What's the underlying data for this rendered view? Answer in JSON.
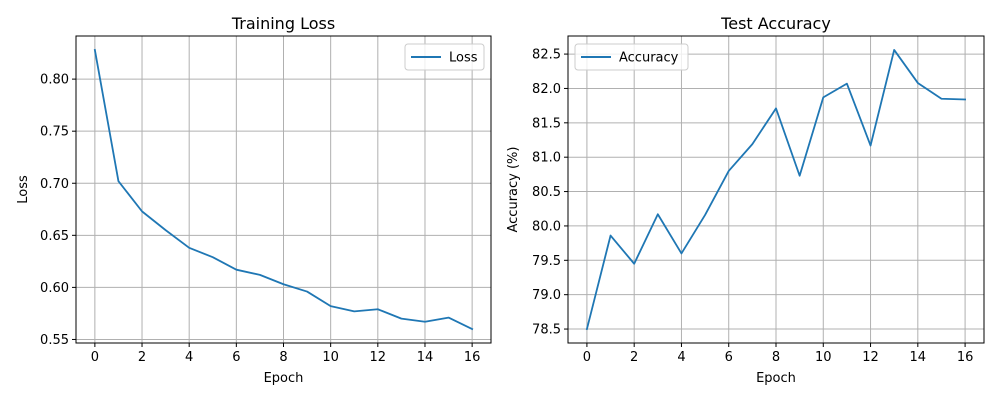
{
  "chart_data": [
    {
      "type": "line",
      "title": "Training Loss",
      "xlabel": "Epoch",
      "ylabel": "Loss",
      "x": [
        0,
        1,
        2,
        3,
        4,
        5,
        6,
        7,
        8,
        9,
        10,
        11,
        12,
        13,
        14,
        15,
        16
      ],
      "series": [
        {
          "name": "Loss",
          "color": "#1f77b4",
          "values": [
            0.828,
            0.702,
            0.673,
            0.655,
            0.638,
            0.629,
            0.617,
            0.612,
            0.603,
            0.596,
            0.582,
            0.577,
            0.579,
            0.57,
            0.567,
            0.571,
            0.56
          ]
        }
      ],
      "xlim": [
        -0.8,
        16.8
      ],
      "ylim": [
        0.5466,
        0.8414
      ],
      "xticks": [
        0,
        2,
        4,
        6,
        8,
        10,
        12,
        14,
        16
      ],
      "xtick_labels": [
        "0",
        "2",
        "4",
        "6",
        "8",
        "10",
        "12",
        "14",
        "16"
      ],
      "yticks": [
        0.55,
        0.6,
        0.65,
        0.7,
        0.75,
        0.8
      ],
      "ytick_labels": [
        "0.55",
        "0.60",
        "0.65",
        "0.70",
        "0.75",
        "0.80"
      ],
      "grid": true,
      "legend": "top-right"
    },
    {
      "type": "line",
      "title": "Test Accuracy",
      "xlabel": "Epoch",
      "ylabel": "Accuracy (%)",
      "x": [
        0,
        1,
        2,
        3,
        4,
        5,
        6,
        7,
        8,
        9,
        10,
        11,
        12,
        13,
        14,
        15,
        16
      ],
      "series": [
        {
          "name": "Accuracy",
          "color": "#1f77b4",
          "values": [
            78.5,
            79.86,
            79.45,
            80.17,
            79.6,
            80.16,
            80.8,
            81.19,
            81.71,
            80.73,
            81.87,
            82.07,
            81.17,
            82.56,
            82.08,
            81.85,
            81.84
          ]
        }
      ],
      "xlim": [
        -0.8,
        16.8
      ],
      "ylim": [
        78.297,
        82.763
      ],
      "xticks": [
        0,
        2,
        4,
        6,
        8,
        10,
        12,
        14,
        16
      ],
      "xtick_labels": [
        "0",
        "2",
        "4",
        "6",
        "8",
        "10",
        "12",
        "14",
        "16"
      ],
      "yticks": [
        78.5,
        79.0,
        79.5,
        80.0,
        80.5,
        81.0,
        81.5,
        82.0,
        82.5
      ],
      "ytick_labels": [
        "78.5",
        "79.0",
        "79.5",
        "80.0",
        "80.5",
        "81.0",
        "81.5",
        "82.0",
        "82.5"
      ],
      "grid": true,
      "legend": "top-left"
    }
  ]
}
